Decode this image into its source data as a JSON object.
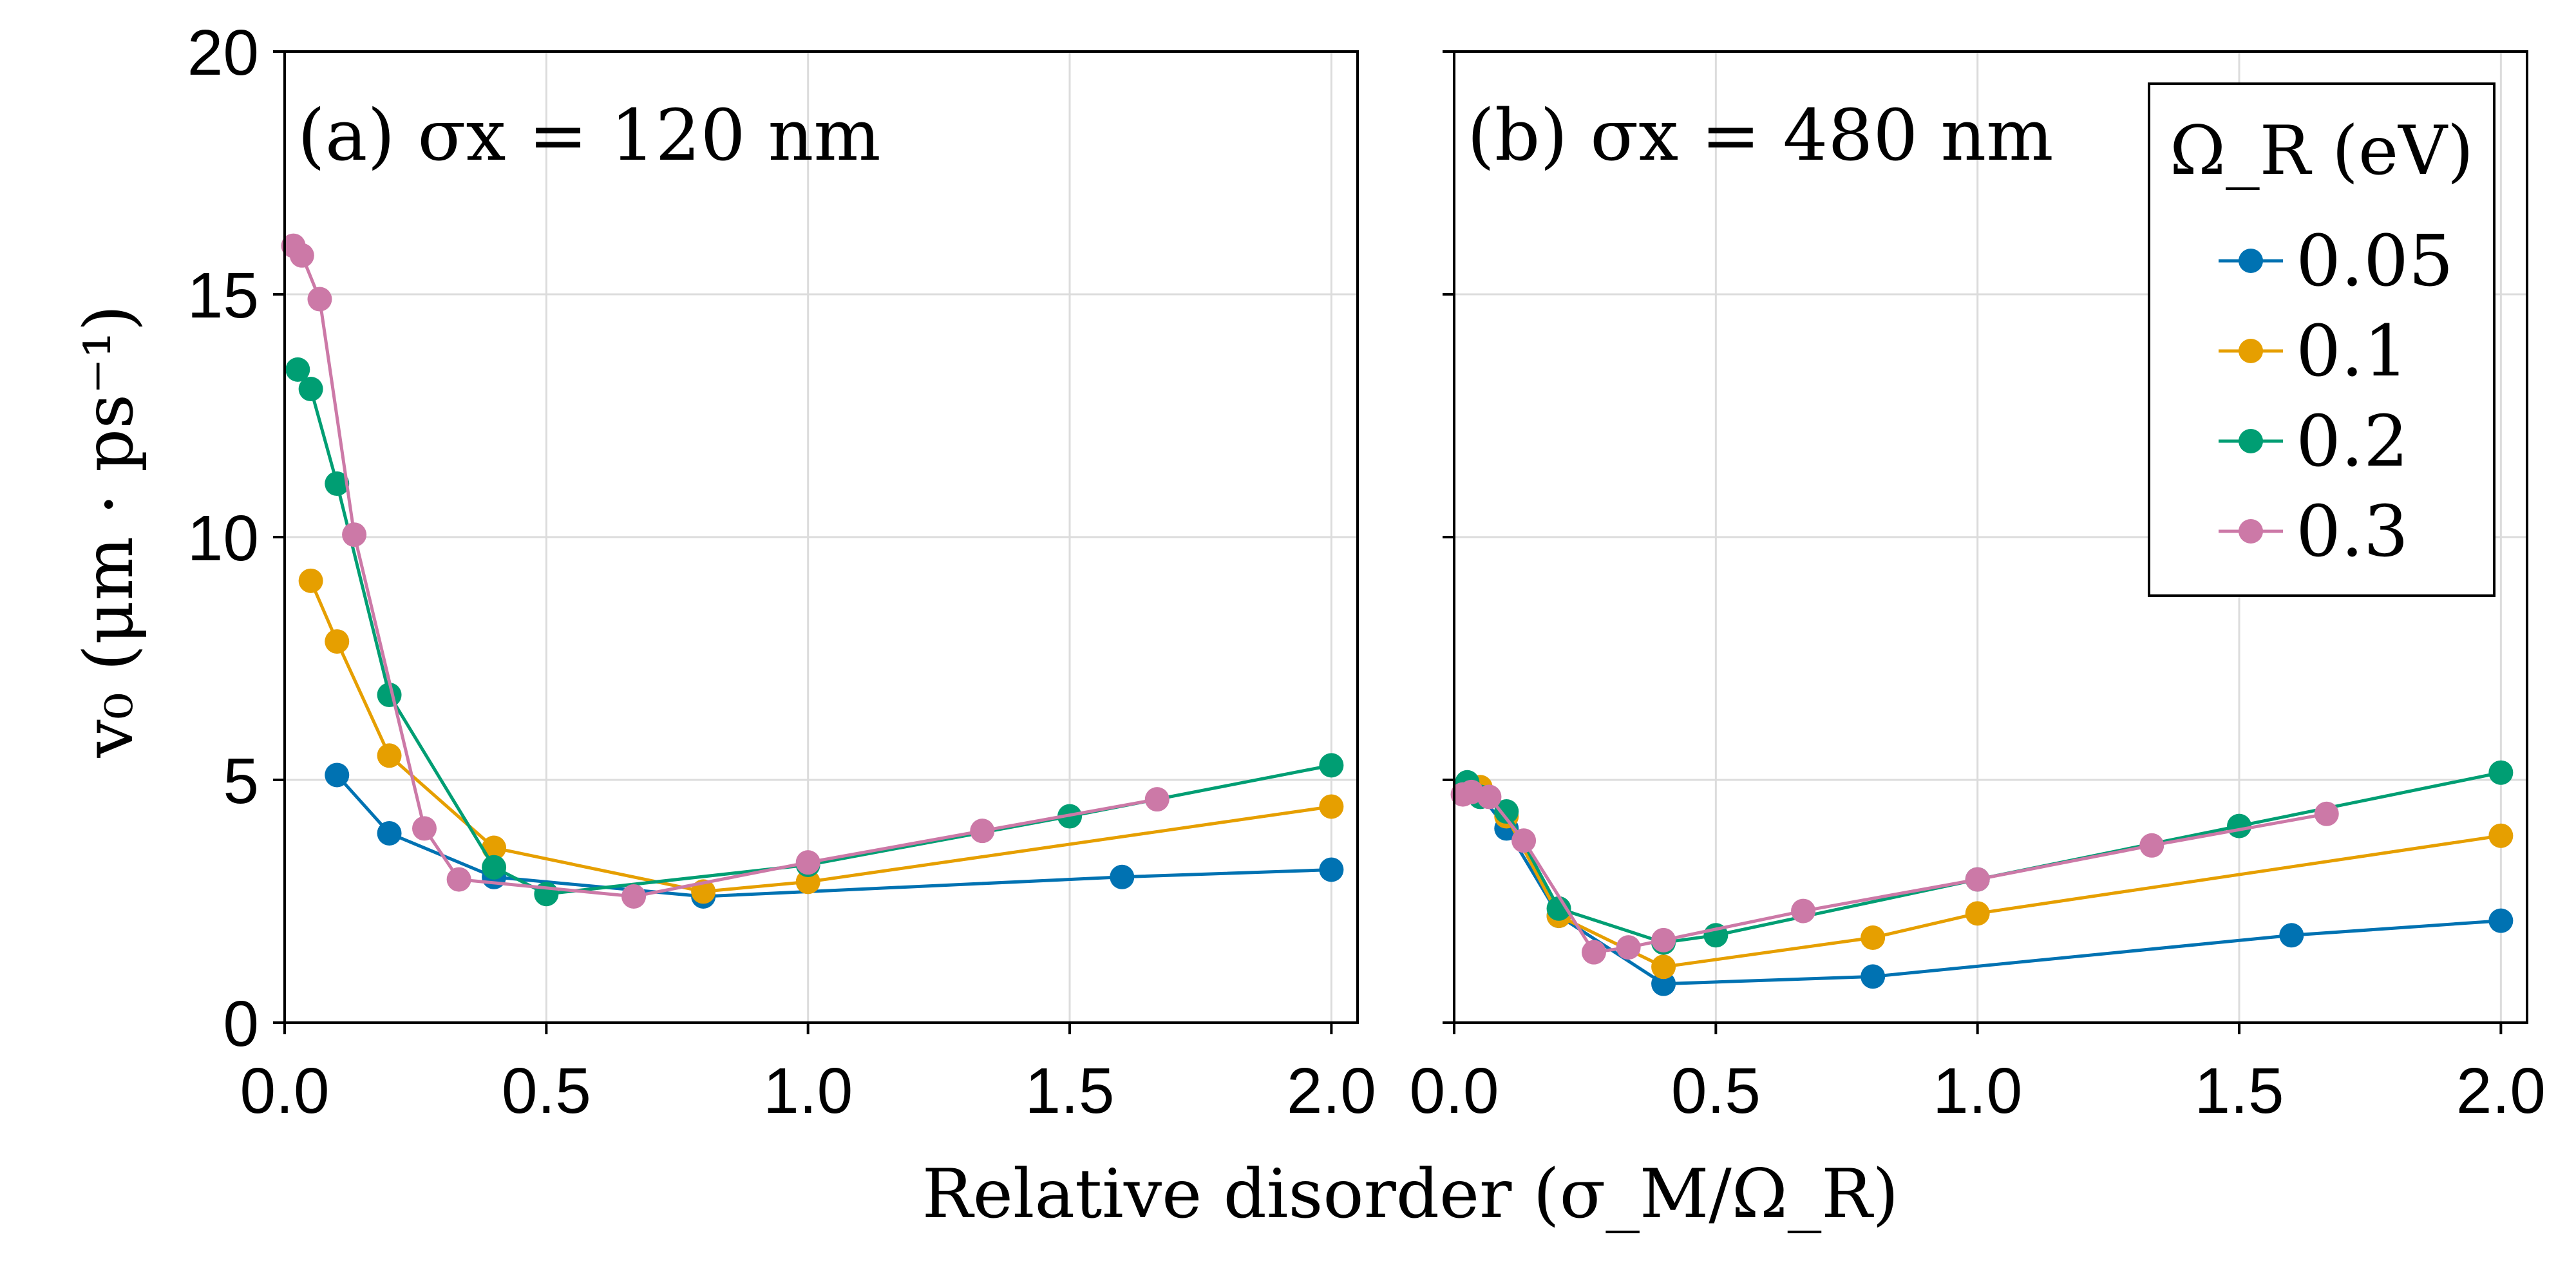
{
  "chart_data": {
    "type": "line",
    "xlabel": "Relative disorder (σ_M/Ω_R)",
    "ylabel": "v₀ (μm · ps⁻¹)",
    "xlim": [
      0.0,
      2.05
    ],
    "ylim": [
      0,
      20
    ],
    "xticks": [
      "0.0",
      "0.5",
      "1.0",
      "1.5",
      "2.0"
    ],
    "yticks": [
      "0",
      "5",
      "10",
      "15",
      "20"
    ],
    "grid": true,
    "legend": {
      "title": "Ω_R (eV)",
      "position": "top-right",
      "entries": [
        "0.05",
        "0.1",
        "0.2",
        "0.3"
      ]
    },
    "panels": [
      {
        "title": "(a) σx = 120 nm",
        "series": [
          {
            "name": "0.05",
            "color": "#0072b2",
            "x": [
              0.1,
              0.2,
              0.4,
              0.8,
              1.6,
              2.0
            ],
            "y": [
              5.1,
              3.9,
              3.0,
              2.6,
              3.0,
              3.15
            ]
          },
          {
            "name": "0.1",
            "color": "#e69f00",
            "x": [
              0.05,
              0.1,
              0.2,
              0.4,
              0.8,
              1.0,
              2.0
            ],
            "y": [
              9.1,
              7.85,
              5.5,
              3.6,
              2.7,
              2.9,
              4.45
            ]
          },
          {
            "name": "0.2",
            "color": "#009e73",
            "x": [
              0.025,
              0.05,
              0.1,
              0.2,
              0.4,
              0.5,
              1.0,
              1.5,
              2.0
            ],
            "y": [
              13.45,
              13.05,
              11.1,
              6.75,
              3.2,
              2.65,
              3.25,
              4.25,
              5.3
            ]
          },
          {
            "name": "0.3",
            "color": "#cc79a7",
            "x": [
              0.0167,
              0.033,
              0.067,
              0.133,
              0.267,
              0.333,
              0.667,
              1.0,
              1.333,
              1.667
            ],
            "y": [
              16.0,
              15.8,
              14.9,
              10.05,
              4.0,
              2.95,
              2.6,
              3.3,
              3.95,
              4.6
            ]
          }
        ]
      },
      {
        "title": "(b) σx = 480 nm",
        "series": [
          {
            "name": "0.05",
            "color": "#0072b2",
            "x": [
              0.025,
              0.05,
              0.1,
              0.2,
              0.4,
              0.8,
              1.6,
              2.0
            ],
            "y": [
              4.75,
              4.7,
              4.0,
              2.2,
              0.8,
              0.95,
              1.8,
              2.1
            ]
          },
          {
            "name": "0.1",
            "color": "#e69f00",
            "x": [
              0.025,
              0.05,
              0.1,
              0.2,
              0.4,
              0.8,
              1.0,
              2.0
            ],
            "y": [
              4.8,
              4.85,
              4.25,
              2.2,
              1.15,
              1.75,
              2.25,
              3.85
            ]
          },
          {
            "name": "0.2",
            "color": "#009e73",
            "x": [
              0.025,
              0.05,
              0.1,
              0.2,
              0.4,
              0.5,
              1.0,
              1.5,
              2.0
            ],
            "y": [
              4.95,
              4.65,
              4.35,
              2.35,
              1.65,
              1.8,
              2.95,
              4.05,
              5.15
            ]
          },
          {
            "name": "0.3",
            "color": "#cc79a7",
            "x": [
              0.0167,
              0.033,
              0.067,
              0.133,
              0.267,
              0.333,
              0.4,
              0.667,
              1.0,
              1.333,
              1.667
            ],
            "y": [
              4.7,
              4.75,
              4.65,
              3.75,
              1.45,
              1.55,
              1.7,
              2.3,
              2.95,
              3.65,
              4.3
            ]
          }
        ]
      }
    ]
  }
}
